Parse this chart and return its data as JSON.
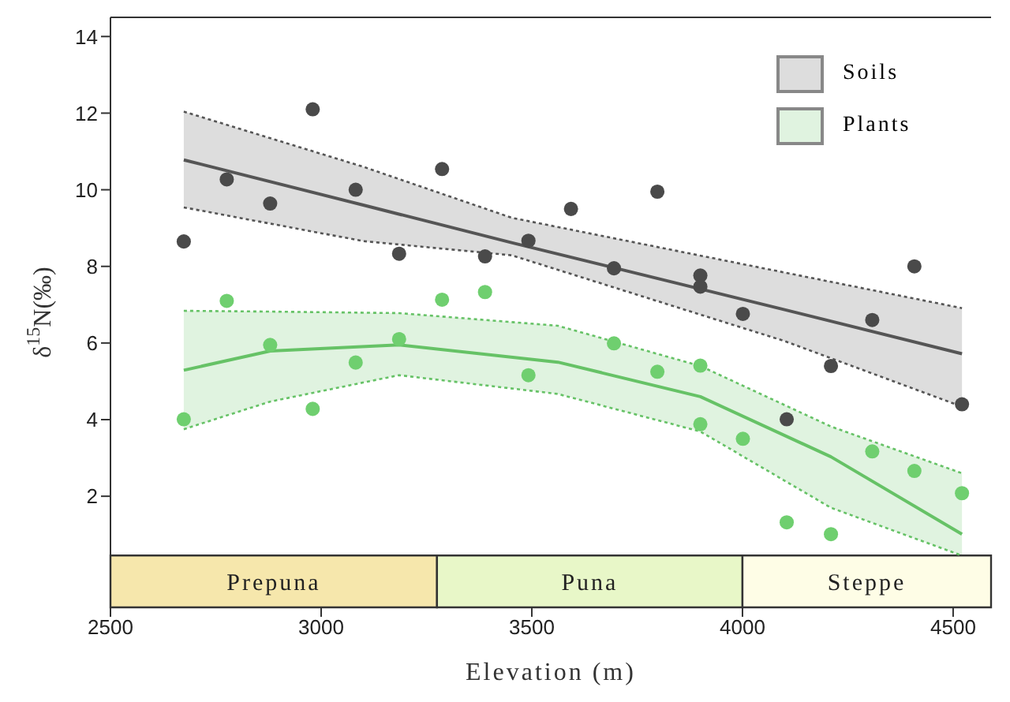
{
  "chart_data": {
    "type": "scatter",
    "xlabel": "Elevation (m)",
    "ylabel": "δ$^{15}$N(‰)",
    "xlim": [
      2500,
      4590
    ],
    "xticks": [
      2500,
      3000,
      3500,
      4000,
      4500
    ],
    "ylim": [
      -0.9,
      14.5
    ],
    "yticks": [
      2,
      4,
      6,
      8,
      10,
      12,
      14
    ],
    "grid": false,
    "legend": "top right",
    "series": [
      {
        "type": "scatter",
        "marker": "circle",
        "color": "#4a4a4a",
        "x": [
          2674,
          2776,
          2879,
          2980,
          3082,
          3185,
          3287,
          3389,
          3492,
          3593,
          3695,
          3798,
          3900,
          3900,
          4001,
          4105,
          4210,
          4308,
          4408,
          4521
        ],
        "values": [
          8.65,
          10.27,
          9.64,
          12.1,
          10.0,
          8.33,
          10.54,
          8.26,
          8.67,
          9.5,
          7.95,
          9.95,
          7.76,
          7.47,
          6.76,
          4.01,
          5.4,
          6.6,
          8.0,
          4.4
        ]
      },
      {
        "type": "line",
        "marker": "none",
        "line_style": "solid",
        "name": "Soils",
        "color": "#555555",
        "x": [
          2674,
          3100,
          3452,
          4100,
          4521
        ],
        "values": [
          10.78,
          9.6,
          8.62,
          6.87,
          5.72
        ],
        "lower": [
          9.54,
          8.66,
          8.29,
          6.05,
          4.34
        ],
        "upper": [
          12.04,
          10.6,
          9.27,
          7.84,
          6.91
        ]
      },
      {
        "type": "line",
        "marker": "none",
        "line_style": "dotted",
        "color": "#555555",
        "x": [
          2674,
          3100,
          3452,
          4100,
          4521
        ],
        "values": [
          9.54,
          8.66,
          8.29,
          6.05,
          4.34
        ]
      },
      {
        "type": "line",
        "marker": "none",
        "line_style": "dotted",
        "color": "#555555",
        "x": [
          2674,
          3100,
          3452,
          4100,
          4521
        ],
        "values": [
          12.04,
          10.6,
          9.27,
          7.84,
          6.91
        ]
      },
      {
        "type": "scatter",
        "marker": "circle",
        "color": "#6fcf6f",
        "x": [
          2674,
          2776,
          2879,
          2980,
          3082,
          3185,
          3287,
          3389,
          3492,
          3695,
          3798,
          3900,
          3900,
          4001,
          4105,
          4210,
          4308,
          4408,
          4521
        ],
        "values": [
          4.01,
          7.1,
          5.95,
          4.28,
          5.49,
          6.1,
          7.13,
          7.33,
          5.16,
          5.99,
          5.25,
          5.41,
          3.88,
          3.5,
          1.32,
          1.01,
          3.17,
          2.66,
          2.08
        ]
      },
      {
        "type": "line",
        "marker": "none",
        "line_style": "solid",
        "name": "Plants",
        "color": "#66c266",
        "x": [
          2674,
          2879,
          3185,
          3562,
          3900,
          4210,
          4521
        ],
        "values": [
          5.29,
          5.79,
          5.95,
          5.5,
          4.6,
          3.03,
          1.01
        ],
        "lower": [
          3.75,
          4.47,
          5.16,
          4.67,
          3.69,
          1.7,
          0.45
        ],
        "upper": [
          6.84,
          6.82,
          6.78,
          6.45,
          5.4,
          3.82,
          2.6
        ]
      },
      {
        "type": "line",
        "marker": "none",
        "line_style": "dotted",
        "color": "#66c266",
        "x": [
          2674,
          2879,
          3185,
          3562,
          3900,
          4210,
          4521
        ],
        "values": [
          3.75,
          4.47,
          5.16,
          4.67,
          3.69,
          1.7,
          0.45
        ]
      },
      {
        "type": "line",
        "marker": "none",
        "line_style": "dotted",
        "color": "#66c266",
        "x": [
          2674,
          2879,
          3185,
          3562,
          3900,
          4210,
          4521
        ],
        "values": [
          6.84,
          6.82,
          6.78,
          6.45,
          5.4,
          3.82,
          2.6
        ]
      }
    ],
    "bands": [
      {
        "axis": "x",
        "from": 2500,
        "to": 3275,
        "label": "Prepuna",
        "color": "#f6e7ac"
      },
      {
        "axis": "x",
        "from": 3275,
        "to": 4000,
        "label": "Puna",
        "color": "#e8f7c8"
      },
      {
        "axis": "x",
        "from": 4000,
        "to": 4590,
        "label": "Steppe",
        "color": "#fefde6"
      }
    ]
  }
}
